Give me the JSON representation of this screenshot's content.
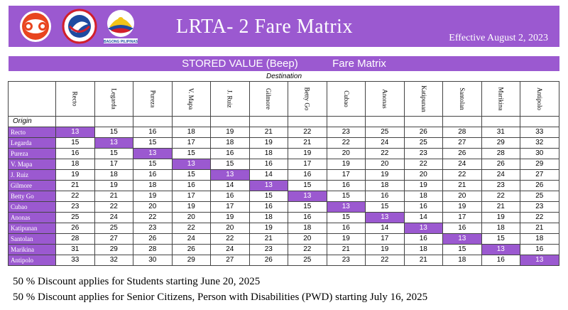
{
  "header": {
    "title": "LRTA- 2 Fare Matrix",
    "effective": "Effective August 2, 2023",
    "logos": {
      "lrta_logo_icon": "lrta-logo",
      "dotr_seal_icon": "dotr-seal",
      "bagong_pilipinas_icon": "bagong-pilipinas-logo",
      "bagong_pilipinas_text": "BAGONG PILIPINAS"
    }
  },
  "subheader": {
    "left": "STORED VALUE (Beep)",
    "right": "Fare Matrix"
  },
  "destination_label": "Destination",
  "origin_label": "Origin",
  "stations": [
    "Recto",
    "Legarda",
    "Pureza",
    "V. Mapa",
    "J. Ruiz",
    "Gilmore",
    "Betty Go",
    "Cubao",
    "Anonas",
    "Katipunan",
    "Santolan",
    "Marikina",
    "Antipolo"
  ],
  "fares": [
    [
      "13",
      "15",
      "16",
      "18",
      "19",
      "21",
      "22",
      "23",
      "25",
      "26",
      "28",
      "31",
      "33"
    ],
    [
      "15",
      "13",
      "15",
      "17",
      "18",
      "19",
      "21",
      "22",
      "24",
      "25",
      "27",
      "29",
      "32"
    ],
    [
      "16",
      "15",
      "13",
      "15",
      "16",
      "18",
      "19",
      "20",
      "22",
      "23",
      "26",
      "28",
      "30"
    ],
    [
      "18",
      "17",
      "15",
      "13",
      "15",
      "16",
      "17",
      "19",
      "20",
      "22",
      "24",
      "26",
      "29"
    ],
    [
      "19",
      "18",
      "16",
      "15",
      "13",
      "14",
      "16",
      "17",
      "19",
      "20",
      "22",
      "24",
      "27"
    ],
    [
      "21",
      "19",
      "18",
      "16",
      "14",
      "13",
      "15",
      "16",
      "18",
      "19",
      "21",
      "23",
      "26"
    ],
    [
      "22",
      "21",
      "19",
      "17",
      "16",
      "15",
      "13",
      "15",
      "16",
      "18",
      "20",
      "22",
      "25"
    ],
    [
      "23",
      "22",
      "20",
      "19",
      "17",
      "16",
      "15",
      "13",
      "15",
      "16",
      "19",
      "21",
      "23"
    ],
    [
      "25",
      "24",
      "22",
      "20",
      "19",
      "18",
      "16",
      "15",
      "13",
      "14",
      "17",
      "19",
      "22"
    ],
    [
      "26",
      "25",
      "23",
      "22",
      "20",
      "19",
      "18",
      "16",
      "14",
      "13",
      "16",
      "18",
      "21"
    ],
    [
      "28",
      "27",
      "26",
      "24",
      "22",
      "21",
      "20",
      "19",
      "17",
      "16",
      "13",
      "15",
      "18"
    ],
    [
      "31",
      "29",
      "28",
      "26",
      "24",
      "23",
      "22",
      "21",
      "19",
      "18",
      "15",
      "13",
      "16"
    ],
    [
      "33",
      "32",
      "30",
      "29",
      "27",
      "26",
      "25",
      "23",
      "22",
      "21",
      "18",
      "16",
      "13"
    ]
  ],
  "colors": {
    "accent": "#9b59d0",
    "text_on_accent": "#ffffff"
  },
  "notes": [
    "50 % Discount applies for Students starting June 20, 2025",
    "50 % Discount applies for Senior Citizens, Person with Disabilities (PWD)  starting July 16, 2025"
  ]
}
